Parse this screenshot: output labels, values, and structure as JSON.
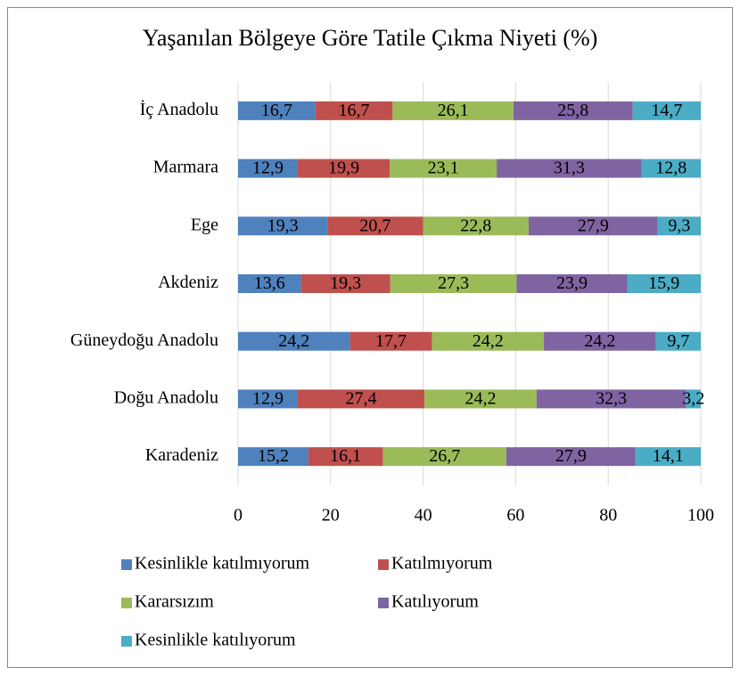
{
  "chart_data": {
    "type": "stacked_bar_horizontal",
    "title": "Yaşanılan Bölgeye Göre Tatile Çıkma Niyeti (%)",
    "categories": [
      "İç Anadolu",
      "Marmara",
      "Ege",
      "Akdeniz",
      "Güneydoğu Anadolu",
      "Doğu Anadolu",
      "Karadeniz"
    ],
    "series": [
      {
        "name": "Kesinlikle katılmıyorum",
        "color": "#4f81bd",
        "values": [
          16.7,
          12.9,
          19.3,
          13.6,
          24.2,
          12.9,
          15.2
        ],
        "value_labels": [
          "16,7",
          "12,9",
          "19,3",
          "13,6",
          "24,2",
          "12,9",
          "15,2"
        ]
      },
      {
        "name": "Katılmıyorum",
        "color": "#c0504d",
        "values": [
          16.7,
          19.9,
          20.7,
          19.3,
          17.7,
          27.4,
          16.1
        ],
        "value_labels": [
          "16,7",
          "19,9",
          "20,7",
          "19,3",
          "17,7",
          "27,4",
          "16,1"
        ]
      },
      {
        "name": "Kararsızım",
        "color": "#9bbb59",
        "values": [
          26.1,
          23.1,
          22.8,
          27.3,
          24.2,
          24.2,
          26.7
        ],
        "value_labels": [
          "26,1",
          "23,1",
          "22,8",
          "27,3",
          "24,2",
          "24,2",
          "26,7"
        ]
      },
      {
        "name": "Katılıyorum",
        "color": "#8064a2",
        "values": [
          25.8,
          31.3,
          27.9,
          23.9,
          24.2,
          32.3,
          27.9
        ],
        "value_labels": [
          "25,8",
          "31,3",
          "27,9",
          "23,9",
          "24,2",
          "32,3",
          "27,9"
        ]
      },
      {
        "name": "Kesinlikle katılıyorum",
        "color": "#4bacc6",
        "values": [
          14.7,
          12.8,
          9.3,
          15.9,
          9.7,
          3.2,
          14.1
        ],
        "value_labels": [
          "14,7",
          "12,8",
          "9,3",
          "15,9",
          "9,7",
          "3,2",
          "14,1"
        ]
      }
    ],
    "xlim": [
      0,
      100
    ],
    "xticks": [
      0,
      20,
      40,
      60,
      80,
      100
    ],
    "grid": true,
    "legend": "bottom"
  }
}
